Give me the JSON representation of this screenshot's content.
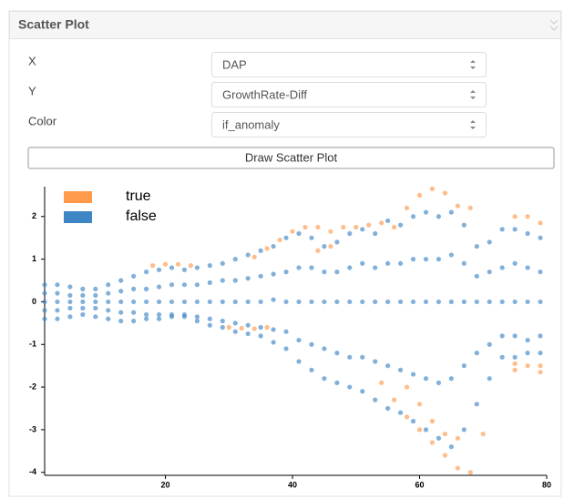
{
  "panel": {
    "title": "Scatter Plot"
  },
  "form": {
    "fields": [
      {
        "label": "X",
        "value": "DAP"
      },
      {
        "label": "Y",
        "value": "GrowthRate-Diff"
      },
      {
        "label": "Color",
        "value": "if_anomaly"
      }
    ],
    "button": "Draw Scatter Plot"
  },
  "chart_data": {
    "type": "scatter",
    "xlim": [
      1,
      80
    ],
    "ylim": [
      -4.07,
      2.7
    ],
    "xticks": [
      20,
      40,
      60,
      80
    ],
    "yticks": [
      -4,
      -3,
      -2,
      -1,
      0,
      1,
      2
    ],
    "legend": "top-left",
    "series": [
      {
        "name": "false",
        "color": "#3f86c4",
        "x": [
          1,
          1,
          1,
          1,
          1,
          3,
          3,
          3,
          3,
          3,
          5,
          5,
          5,
          5,
          5,
          7,
          7,
          7,
          7,
          7,
          9,
          9,
          9,
          9,
          9,
          11,
          11,
          11,
          11,
          11,
          13,
          13,
          13,
          13,
          13,
          15,
          15,
          15,
          15,
          15,
          17,
          17,
          17,
          17,
          17,
          19,
          19,
          19,
          19,
          19,
          21,
          21,
          21,
          21,
          21,
          23,
          23,
          23,
          23,
          23,
          25,
          25,
          25,
          25,
          25,
          27,
          27,
          27,
          27,
          27,
          29,
          29,
          29,
          29,
          29,
          31,
          31,
          31,
          31,
          31,
          33,
          33,
          33,
          33,
          33,
          35,
          35,
          35,
          35,
          35,
          37,
          37,
          37,
          37,
          37,
          39,
          39,
          39,
          39,
          39,
          41,
          41,
          41,
          41,
          41,
          43,
          43,
          43,
          43,
          43,
          45,
          45,
          45,
          45,
          45,
          47,
          47,
          47,
          47,
          47,
          49,
          49,
          49,
          49,
          49,
          51,
          51,
          51,
          51,
          51,
          53,
          53,
          53,
          53,
          53,
          55,
          55,
          55,
          55,
          55,
          57,
          57,
          57,
          57,
          57,
          59,
          59,
          59,
          59,
          59,
          61,
          61,
          61,
          61,
          61,
          63,
          63,
          63,
          63,
          63,
          65,
          65,
          65,
          65,
          65,
          67,
          67,
          67,
          67,
          67,
          69,
          69,
          69,
          69,
          69,
          71,
          71,
          71,
          71,
          71,
          73,
          73,
          73,
          73,
          73,
          75,
          75,
          75,
          75,
          75,
          77,
          77,
          77,
          77,
          77,
          79,
          79,
          79,
          79,
          79
        ],
        "values": [
          0.4,
          0.2,
          0,
          -0.2,
          -0.4,
          0.4,
          0.2,
          0,
          -0.2,
          -0.4,
          0.35,
          0.15,
          0,
          -0.15,
          -0.35,
          0.3,
          0.15,
          0,
          -0.15,
          -0.3,
          0.3,
          0.15,
          0,
          -0.15,
          -0.35,
          0.4,
          0.2,
          0,
          -0.2,
          -0.4,
          0.5,
          0.25,
          0,
          -0.25,
          -0.45,
          0.6,
          0.3,
          0,
          -0.25,
          -0.45,
          0.7,
          0.3,
          0,
          -0.3,
          -0.4,
          0.75,
          0.35,
          0,
          -0.3,
          -0.4,
          0.8,
          0.4,
          0,
          -0.3,
          -0.35,
          0.75,
          0.4,
          0,
          -0.3,
          -0.35,
          0.8,
          0.4,
          0,
          -0.35,
          -0.45,
          0.85,
          0.45,
          0,
          -0.4,
          -0.55,
          0.9,
          0.5,
          0,
          -0.45,
          -0.6,
          1.0,
          0.5,
          0,
          -0.5,
          -0.7,
          1.1,
          0.55,
          0,
          -0.55,
          -0.75,
          1.2,
          0.6,
          0,
          -0.6,
          -0.8,
          1.3,
          0.65,
          0.05,
          -0.65,
          -0.95,
          1.5,
          0.7,
          0,
          -0.7,
          -1.1,
          1.6,
          0.8,
          0,
          -0.9,
          -1.4,
          1.5,
          0.8,
          0,
          -1.0,
          -1.6,
          1.3,
          0.7,
          0,
          -1.1,
          -1.8,
          1.4,
          0.7,
          0,
          -1.2,
          -1.9,
          1.6,
          0.8,
          0,
          -1.3,
          -2.0,
          1.7,
          0.9,
          0,
          -1.3,
          -2.1,
          1.6,
          0.8,
          0,
          -1.4,
          -2.3,
          1.9,
          0.9,
          0,
          -1.5,
          -2.5,
          1.8,
          0.9,
          0,
          -1.6,
          -2.6,
          2.0,
          1.0,
          0,
          -1.7,
          -2.8,
          2.1,
          1.0,
          0,
          -1.8,
          -3.0,
          2.0,
          1.0,
          0,
          -1.9,
          -3.2,
          2.1,
          1.1,
          0,
          -1.8,
          -3.4,
          1.8,
          0.9,
          0,
          -1.5,
          -3.0,
          1.3,
          0.6,
          0,
          -1.2,
          -2.4,
          1.4,
          0.7,
          0,
          -1.0,
          -1.8,
          1.7,
          0.8,
          0,
          -0.8,
          -1.3,
          1.7,
          0.9,
          0,
          -0.8,
          -1.3,
          1.6,
          0.8,
          0,
          -0.9,
          -1.2,
          1.5,
          0.7,
          0,
          -0.8,
          -1.2
        ]
      },
      {
        "name": "true",
        "color": "#ff9a4d",
        "x": [
          18,
          20,
          22,
          24,
          30,
          32,
          34,
          36,
          34,
          36,
          38,
          40,
          42,
          44,
          44,
          46,
          46,
          48,
          50,
          52,
          54,
          56,
          58,
          60,
          62,
          64,
          66,
          68,
          75,
          77,
          79,
          75,
          77,
          79,
          75,
          79,
          54,
          56,
          58,
          60,
          62,
          64,
          66,
          68,
          58,
          60,
          62,
          64,
          66,
          70
        ],
        "values": [
          0.85,
          0.88,
          0.88,
          0.85,
          -0.6,
          -0.62,
          -0.63,
          -0.6,
          1.05,
          1.25,
          1.45,
          1.65,
          1.75,
          1.75,
          1.2,
          1.3,
          1.65,
          1.75,
          1.75,
          1.8,
          1.85,
          1.75,
          2.2,
          2.5,
          2.65,
          2.55,
          2.25,
          2.2,
          2.0,
          2.0,
          1.85,
          -1.45,
          -1.5,
          -1.5,
          -1.6,
          -1.65,
          -1.9,
          -2.3,
          -2.7,
          -3.0,
          -3.3,
          -3.6,
          -3.9,
          -4.0,
          -2.0,
          -2.4,
          -2.8,
          -3.1,
          -3.2,
          -3.1
        ]
      }
    ]
  }
}
